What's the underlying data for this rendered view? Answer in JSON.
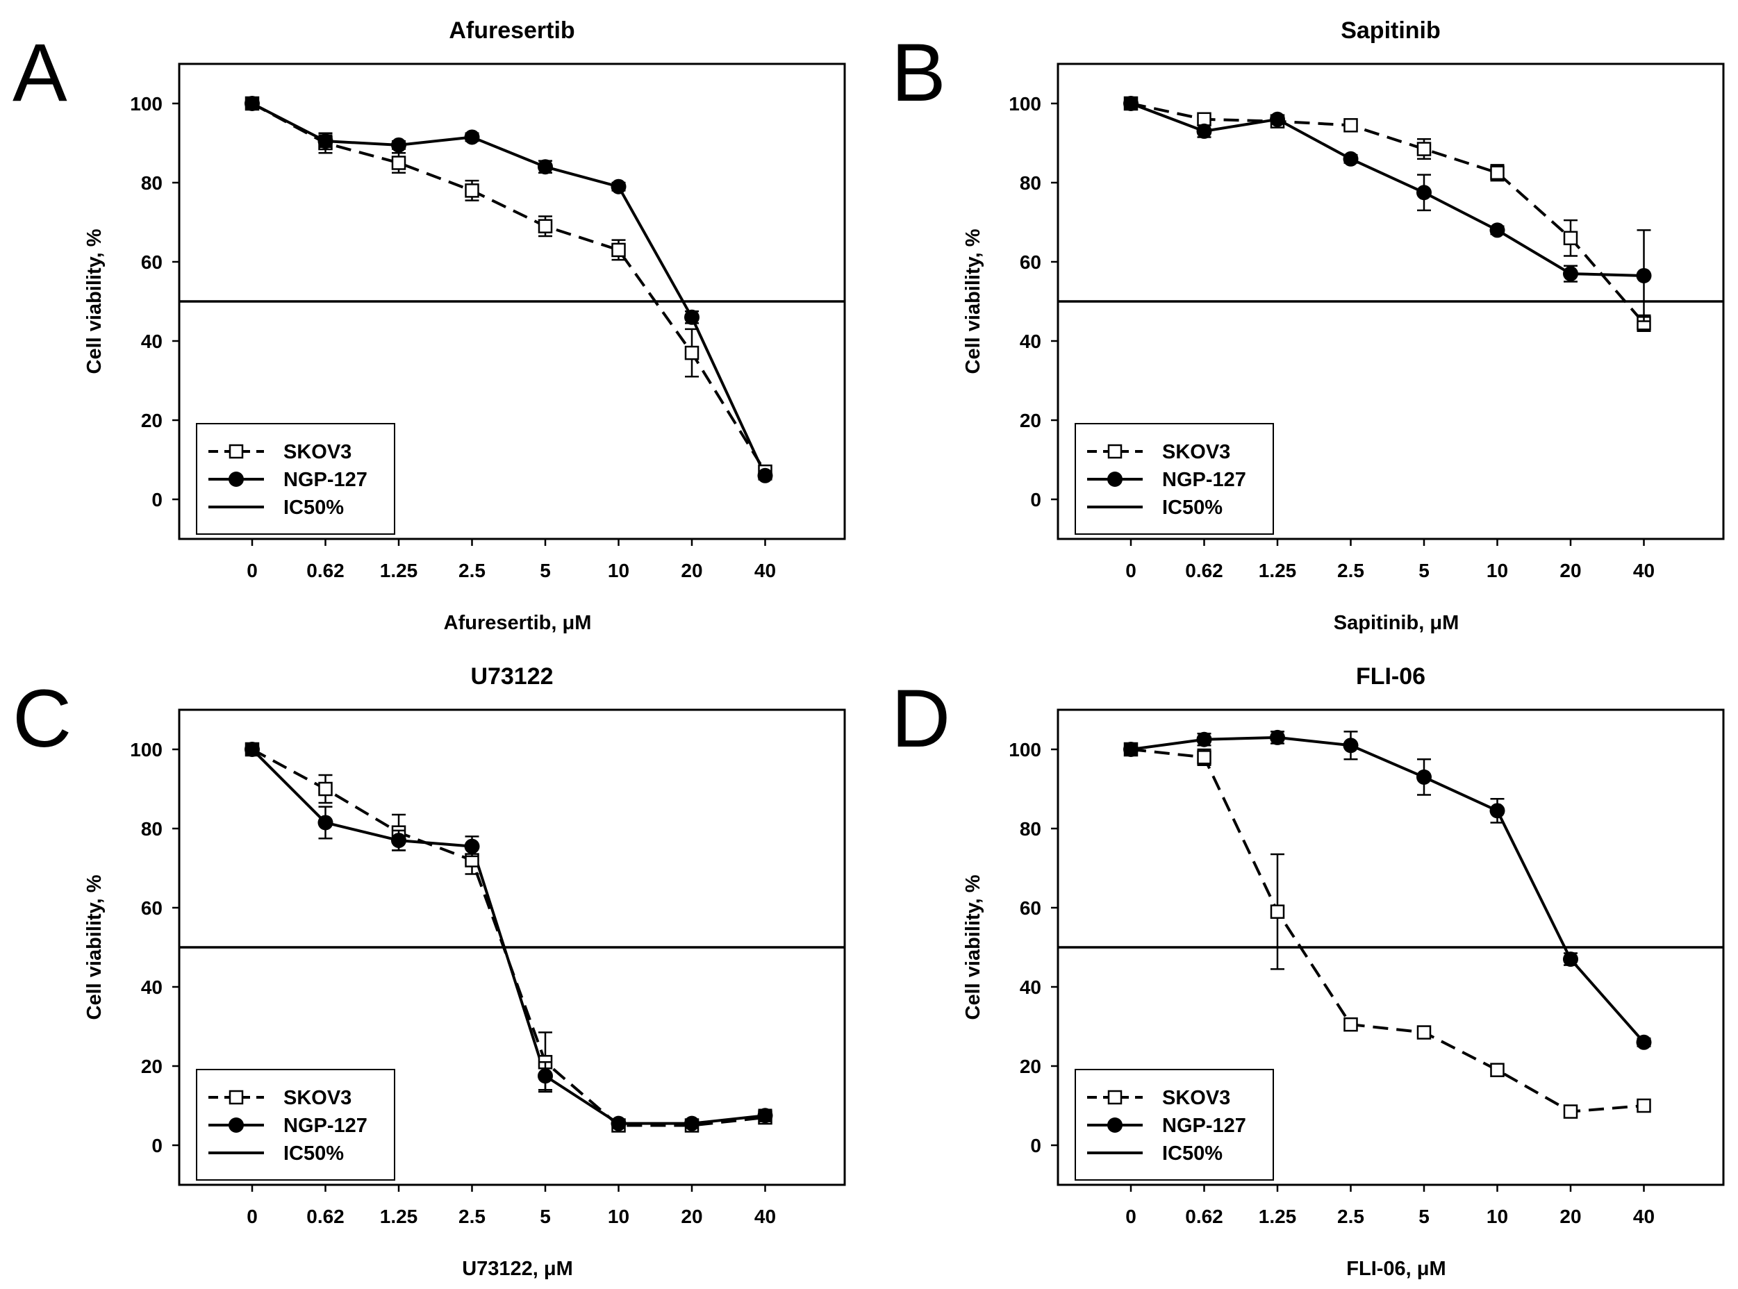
{
  "chart_data": [
    {
      "type": "line",
      "panel_label": "A",
      "title": "Afuresertib",
      "xlabel": "Afuresertib, μM",
      "ylabel": "Cell viability, %",
      "categories": [
        "0",
        "0.62",
        "1.25",
        "2.5",
        "5",
        "10",
        "20",
        "40"
      ],
      "yticks": [
        "0",
        "20",
        "40",
        "60",
        "80",
        "100"
      ],
      "ylim": [
        -10,
        110
      ],
      "reference_line": {
        "name": "IC50%",
        "y": 50
      },
      "series": [
        {
          "name": "SKOV3",
          "style": "dashed-open-square",
          "values": [
            100,
            90,
            85,
            78,
            69,
            63,
            37,
            7
          ],
          "errors": [
            0.5,
            2.5,
            2.5,
            2.5,
            2.5,
            2.5,
            6,
            1
          ]
        },
        {
          "name": "NGP-127",
          "style": "solid-filled-circle",
          "values": [
            100,
            90.5,
            89.5,
            91.5,
            84,
            79,
            46,
            6
          ],
          "errors": [
            0.5,
            1.5,
            1,
            1,
            1.5,
            1,
            1.5,
            1
          ]
        }
      ],
      "legend": [
        "SKOV3",
        "NGP-127",
        "IC50%"
      ],
      "legend_position": "bottom-left"
    },
    {
      "type": "line",
      "panel_label": "B",
      "title": "Sapitinib",
      "xlabel": "Sapitinib, μM",
      "ylabel": "Cell viability, %",
      "categories": [
        "0",
        "0.62",
        "1.25",
        "2.5",
        "5",
        "10",
        "20",
        "40"
      ],
      "yticks": [
        "0",
        "20",
        "40",
        "60",
        "80",
        "100"
      ],
      "ylim": [
        -10,
        110
      ],
      "reference_line": {
        "name": "IC50%",
        "y": 50
      },
      "series": [
        {
          "name": "SKOV3",
          "style": "dashed-open-square",
          "values": [
            100,
            96,
            95.5,
            94.5,
            88.5,
            82.5,
            66,
            44.5
          ],
          "errors": [
            0.5,
            1.5,
            1,
            1.5,
            2.5,
            2,
            4.5,
            2
          ]
        },
        {
          "name": "NGP-127",
          "style": "solid-filled-circle",
          "values": [
            100,
            93,
            96,
            86,
            77.5,
            68,
            57,
            56.5
          ],
          "errors": [
            0.5,
            1.5,
            1,
            1,
            4.5,
            1,
            2,
            11.5
          ]
        }
      ],
      "legend": [
        "SKOV3",
        "NGP-127",
        "IC50%"
      ],
      "legend_position": "bottom-left"
    },
    {
      "type": "line",
      "panel_label": "C",
      "title": "U73122",
      "xlabel": "U73122, μM",
      "ylabel": "Cell viability, %",
      "categories": [
        "0",
        "0.62",
        "1.25",
        "2.5",
        "5",
        "10",
        "20",
        "40"
      ],
      "yticks": [
        "0",
        "20",
        "40",
        "60",
        "80",
        "100"
      ],
      "ylim": [
        -10,
        110
      ],
      "reference_line": {
        "name": "IC50%",
        "y": 50
      },
      "series": [
        {
          "name": "SKOV3",
          "style": "dashed-open-square",
          "values": [
            100,
            90,
            79,
            72,
            21,
            5,
            5,
            7
          ],
          "errors": [
            0.5,
            3.5,
            4.5,
            3.5,
            7.5,
            1,
            1,
            1
          ]
        },
        {
          "name": "NGP-127",
          "style": "solid-filled-circle",
          "values": [
            100,
            81.5,
            77,
            75.5,
            17.5,
            5.5,
            5.5,
            7.5
          ],
          "errors": [
            0.5,
            4,
            2.5,
            2.5,
            3.5,
            1,
            1,
            1.5
          ]
        }
      ],
      "legend": [
        "SKOV3",
        "NGP-127",
        "IC50%"
      ],
      "legend_position": "bottom-left"
    },
    {
      "type": "line",
      "panel_label": "D",
      "title": "FLI-06",
      "xlabel": "FLI-06, μM",
      "ylabel": "Cell viability, %",
      "categories": [
        "0",
        "0.62",
        "1.25",
        "2.5",
        "5",
        "10",
        "20",
        "40"
      ],
      "yticks": [
        "0",
        "20",
        "40",
        "60",
        "80",
        "100"
      ],
      "ylim": [
        -10,
        110
      ],
      "reference_line": {
        "name": "IC50%",
        "y": 50
      },
      "series": [
        {
          "name": "SKOV3",
          "style": "dashed-open-square",
          "values": [
            100,
            98,
            59,
            30.5,
            28.5,
            19,
            8.5,
            10
          ],
          "errors": [
            0.5,
            2,
            14.5,
            1.5,
            1.5,
            1,
            1,
            1
          ]
        },
        {
          "name": "NGP-127",
          "style": "solid-filled-circle",
          "values": [
            100,
            102.5,
            103,
            101,
            93,
            84.5,
            47,
            26
          ],
          "errors": [
            0.5,
            1.5,
            1.5,
            3.5,
            4.5,
            3,
            1.5,
            1
          ]
        }
      ],
      "legend": [
        "SKOV3",
        "NGP-127",
        "IC50%"
      ],
      "legend_position": "bottom-left"
    }
  ]
}
